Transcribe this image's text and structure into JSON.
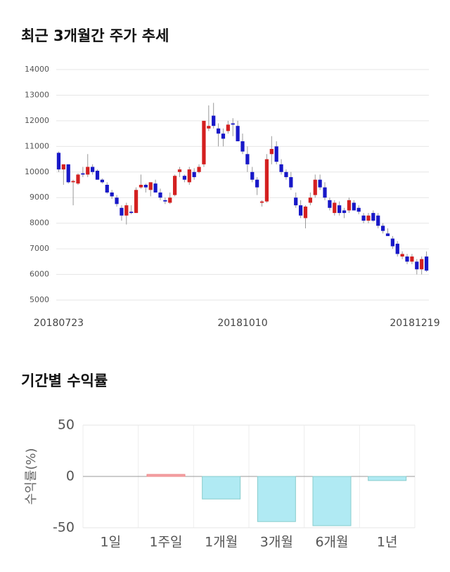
{
  "chart_data": [
    {
      "type": "candlestick",
      "title": "최근 3개월간 주가 추세",
      "categories": [
        "20180723",
        null,
        null,
        null,
        null,
        null,
        null,
        null,
        null,
        null,
        null,
        null,
        null,
        null,
        null,
        null,
        null,
        null,
        null,
        null,
        null,
        null,
        null,
        null,
        null,
        null,
        null,
        null,
        null,
        null,
        null,
        null,
        null,
        null,
        null,
        null,
        null,
        null,
        "20181010",
        null,
        null,
        null,
        null,
        null,
        null,
        null,
        null,
        null,
        null,
        null,
        null,
        null,
        null,
        null,
        null,
        null,
        null,
        null,
        null,
        null,
        null,
        null,
        null,
        null,
        null,
        null,
        null,
        null,
        null,
        null,
        null,
        null,
        null,
        null,
        null,
        null,
        "20181219"
      ],
      "ohlc": [
        [
          10750,
          10800,
          10000,
          10100
        ],
        [
          10100,
          10300,
          9500,
          10300
        ],
        [
          10300,
          10300,
          9550,
          9600
        ],
        [
          9600,
          9700,
          8700,
          9650
        ],
        [
          9550,
          9950,
          9500,
          9900
        ],
        [
          9950,
          10200,
          9800,
          9900
        ],
        [
          9900,
          10700,
          9800,
          10200
        ],
        [
          10200,
          10300,
          9900,
          10000
        ],
        [
          10050,
          10100,
          9700,
          9700
        ],
        [
          9700,
          9750,
          9550,
          9600
        ],
        [
          9500,
          9600,
          9150,
          9200
        ],
        [
          9200,
          9300,
          8950,
          9050
        ],
        [
          9000,
          9100,
          8650,
          8750
        ],
        [
          8600,
          8700,
          8100,
          8300
        ],
        [
          8300,
          8800,
          7950,
          8700
        ],
        [
          8450,
          8700,
          8350,
          8400
        ],
        [
          8400,
          9400,
          8400,
          9300
        ],
        [
          9400,
          9900,
          9350,
          9500
        ],
        [
          9500,
          9550,
          9200,
          9400
        ],
        [
          9300,
          9600,
          9050,
          9600
        ],
        [
          9550,
          9700,
          9200,
          9200
        ],
        [
          9200,
          9350,
          8900,
          9000
        ],
        [
          8900,
          9000,
          8750,
          8850
        ],
        [
          8800,
          9200,
          8750,
          9000
        ],
        [
          9100,
          9900,
          9050,
          9850
        ],
        [
          10000,
          10200,
          9800,
          10100
        ],
        [
          9850,
          9900,
          9600,
          9700
        ],
        [
          9600,
          10200,
          9500,
          10100
        ],
        [
          10000,
          10150,
          9700,
          9800
        ],
        [
          10000,
          10300,
          9950,
          10200
        ],
        [
          10300,
          12000,
          10200,
          12000
        ],
        [
          11700,
          12600,
          11600,
          11800
        ],
        [
          12200,
          12700,
          11700,
          11800
        ],
        [
          11700,
          11900,
          11000,
          11500
        ],
        [
          11500,
          11700,
          11000,
          11300
        ],
        [
          11600,
          12000,
          11500,
          11850
        ],
        [
          11900,
          12100,
          11400,
          11850
        ],
        [
          11800,
          12000,
          11200,
          11200
        ],
        [
          11200,
          11500,
          10700,
          10800
        ],
        [
          10700,
          11000,
          10000,
          10300
        ],
        [
          10000,
          10200,
          9600,
          9700
        ],
        [
          9700,
          9800,
          9100,
          9400
        ],
        [
          8800,
          8900,
          8650,
          8850
        ],
        [
          8850,
          10700,
          8800,
          10500
        ],
        [
          10700,
          11400,
          10300,
          10900
        ],
        [
          11000,
          11200,
          10300,
          10400
        ],
        [
          10300,
          10500,
          9900,
          10000
        ],
        [
          10000,
          10100,
          9700,
          9800
        ],
        [
          9800,
          10000,
          9300,
          9400
        ],
        [
          9000,
          9200,
          8600,
          8700
        ],
        [
          8700,
          8900,
          8200,
          8300
        ],
        [
          8200,
          8700,
          7800,
          8650
        ],
        [
          8800,
          9200,
          8700,
          9000
        ],
        [
          9100,
          9900,
          9000,
          9700
        ],
        [
          9700,
          9900,
          9300,
          9400
        ],
        [
          9400,
          9600,
          8900,
          9000
        ],
        [
          8900,
          9000,
          8500,
          8600
        ],
        [
          8400,
          8900,
          8300,
          8800
        ],
        [
          8700,
          8850,
          8300,
          8400
        ],
        [
          8500,
          8600,
          8200,
          8400
        ],
        [
          8500,
          9000,
          8400,
          8900
        ],
        [
          8800,
          8900,
          8500,
          8500
        ],
        [
          8600,
          8700,
          8350,
          8450
        ],
        [
          8300,
          8400,
          8000,
          8100
        ],
        [
          8100,
          8400,
          8000,
          8300
        ],
        [
          8400,
          8500,
          8050,
          8100
        ],
        [
          8300,
          8400,
          7800,
          7900
        ],
        [
          7900,
          8000,
          7600,
          7700
        ],
        [
          7600,
          7800,
          7500,
          7500
        ],
        [
          7400,
          7500,
          7000,
          7100
        ],
        [
          7200,
          7300,
          6700,
          6800
        ],
        [
          6700,
          6900,
          6600,
          6800
        ],
        [
          6700,
          6800,
          6400,
          6500
        ],
        [
          6500,
          6800,
          6400,
          6700
        ],
        [
          6500,
          6600,
          6000,
          6200
        ],
        [
          6200,
          6700,
          6000,
          6600
        ],
        [
          6700,
          6900,
          6100,
          6150
        ]
      ],
      "up_color": "#d42020",
      "down_color": "#1818c8",
      "ylim": [
        5000,
        14000
      ],
      "yticks": [
        5000,
        6000,
        7000,
        8000,
        9000,
        10000,
        11000,
        12000,
        13000,
        14000
      ],
      "grid": true
    },
    {
      "type": "bar",
      "title": "기간별 수익률",
      "ylabel": "수익률(%)",
      "categories": [
        "1일",
        "1주일",
        "1개월",
        "3개월",
        "6개월",
        "1년"
      ],
      "values": [
        0,
        2,
        -22,
        -44,
        -48,
        -4
      ],
      "positive_color": "#f4a3a8",
      "negative_color": "#b0eaf3",
      "ylim": [
        -50,
        50
      ],
      "yticks": [
        -50,
        0,
        50
      ],
      "grid": true
    }
  ]
}
